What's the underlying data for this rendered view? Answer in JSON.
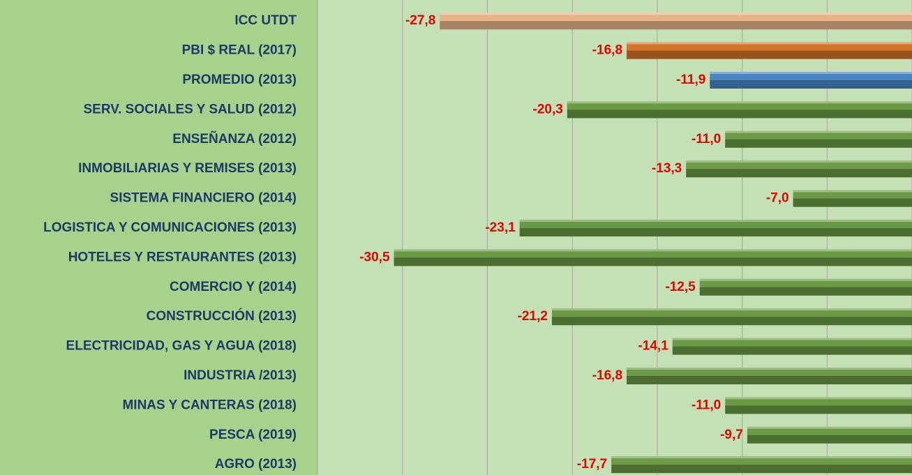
{
  "chart_data": {
    "type": "bar",
    "orientation": "horizontal",
    "categories": [
      "ICC UTDT",
      "PBI $ REAL (2017)",
      "PROMEDIO (2013)",
      "SERV. SOCIALES Y SALUD (2012)",
      "ENSEÑANZA (2012)",
      "INMOBILIARIAS Y REMISES (2013)",
      "SISTEMA FINANCIERO (2014)",
      "LOGISTICA Y COMUNICACIONES (2013)",
      "HOTELES Y RESTAURANTES (2013)",
      "COMERCIO Y  (2014)",
      "CONSTRUCCIÓN (2013)",
      "ELECTRICIDAD, GAS Y AGUA (2018)",
      "INDUSTRIA /2013)",
      "MINAS Y CANTERAS (2018)",
      "PESCA (2019)",
      "AGRO (2013)"
    ],
    "values": [
      -27.8,
      -16.8,
      -11.9,
      -20.3,
      -11.0,
      -13.3,
      -7.0,
      -23.1,
      -30.5,
      -12.5,
      -21.2,
      -14.1,
      -16.8,
      -11.0,
      -9.7,
      -17.7
    ],
    "value_labels": [
      "-27,8",
      "-16,8",
      "-11,9",
      "-20,3",
      "-11,0",
      "-13,3",
      "-7,0",
      "-23,1",
      "-30,5",
      "-12,5",
      "-21,2",
      "-14,1",
      "-16,8",
      "-11,0",
      "-9,7",
      "-17,7"
    ],
    "colors": [
      "#e8b48a",
      "#d4742a",
      "#4a86c5",
      "#6a9a45",
      "#6a9a45",
      "#6a9a45",
      "#6a9a45",
      "#6a9a45",
      "#6a9a45",
      "#6a9a45",
      "#6a9a45",
      "#6a9a45",
      "#6a9a45",
      "#6a9a45",
      "#6a9a45",
      "#6a9a45"
    ],
    "xlim": [
      -35,
      0
    ],
    "xticks": [
      -35,
      -30,
      -25,
      -20,
      -15,
      -10,
      -5,
      0
    ],
    "grid": true
  }
}
